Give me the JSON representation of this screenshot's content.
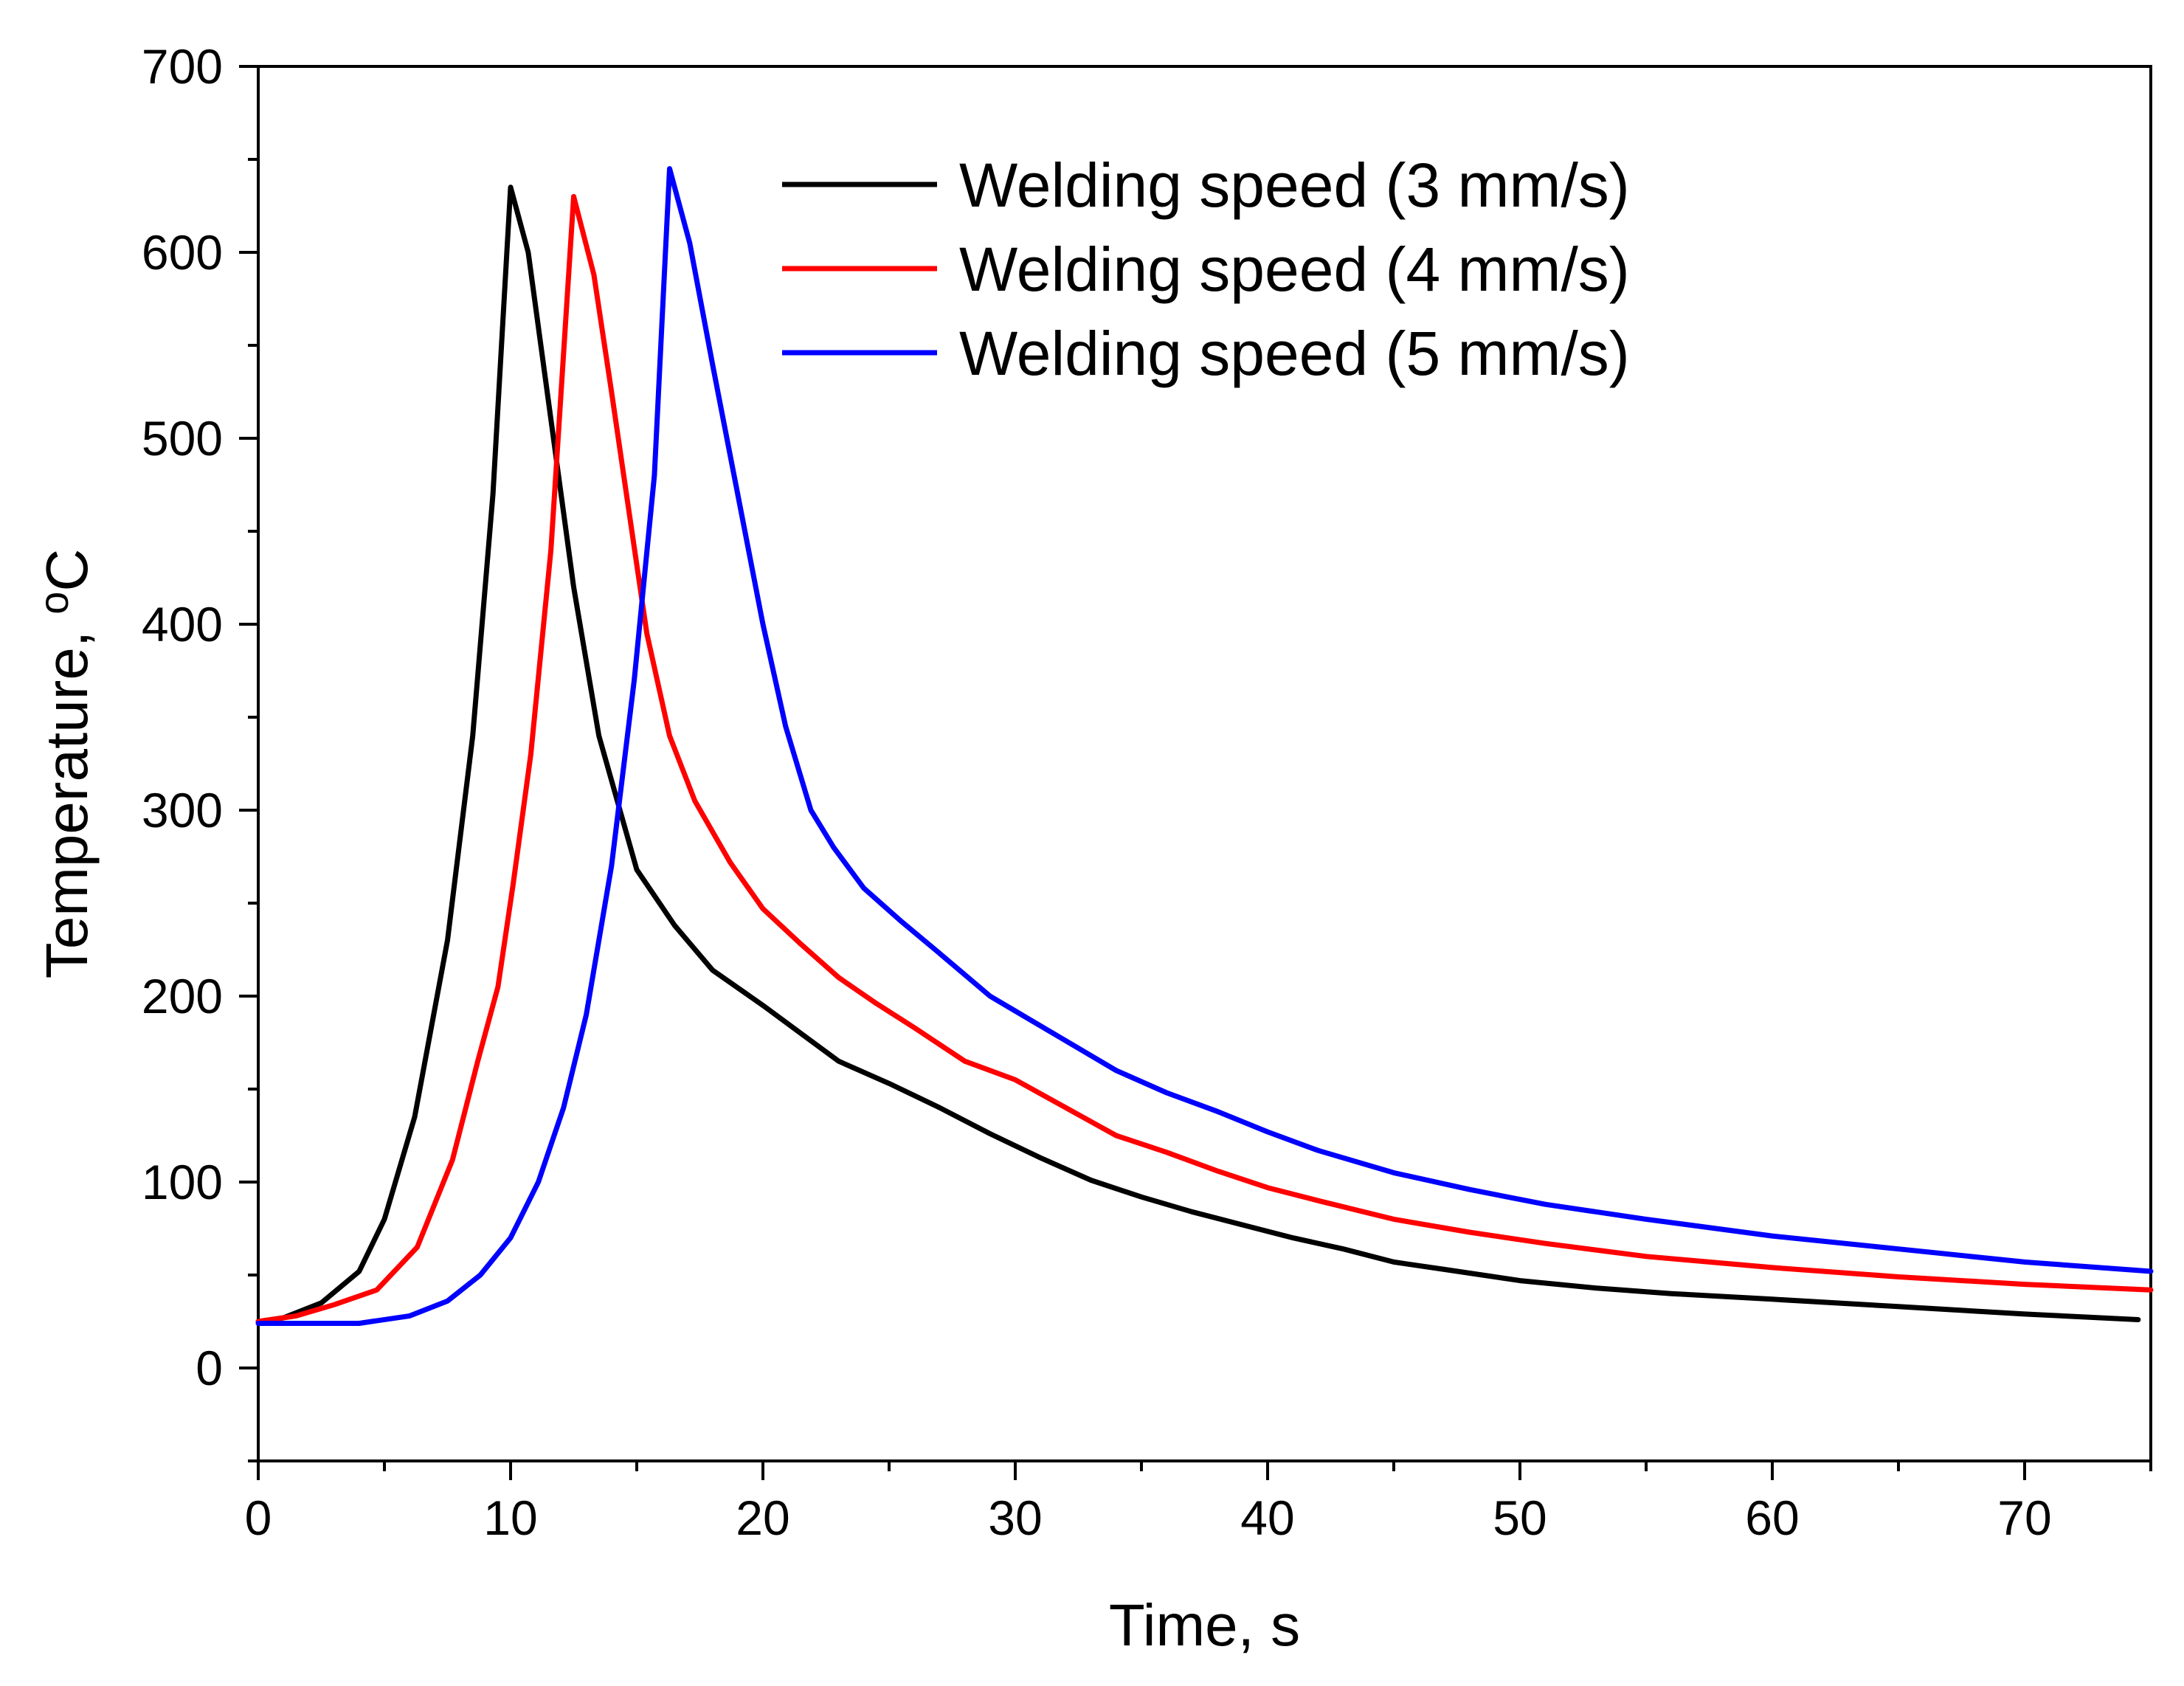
{
  "chart_data": {
    "type": "line",
    "title": "",
    "xlabel": "Time, s",
    "ylabel": {
      "main": "Temperature, ",
      "superscript": "o",
      "unit": "C"
    },
    "xlim": [
      0,
      75
    ],
    "ylim": [
      -50,
      700
    ],
    "x_ticks": [
      0,
      10,
      20,
      30,
      40,
      50,
      60,
      70
    ],
    "y_ticks": [
      0,
      100,
      200,
      300,
      400,
      500,
      600,
      700
    ],
    "x_minor_step": 5,
    "y_minor_step": 50,
    "grid": false,
    "legend_position": "top-right",
    "series": [
      {
        "name": "Welding speed (3 mm/s)",
        "color": "#000000",
        "points": [
          [
            0,
            25
          ],
          [
            1,
            27
          ],
          [
            2.5,
            35
          ],
          [
            4,
            52
          ],
          [
            5,
            80
          ],
          [
            6.2,
            135
          ],
          [
            7.5,
            230
          ],
          [
            8.5,
            340
          ],
          [
            9.3,
            470
          ],
          [
            10,
            635
          ],
          [
            10.7,
            600
          ],
          [
            11.5,
            520
          ],
          [
            12.5,
            420
          ],
          [
            13.5,
            340
          ],
          [
            15,
            268
          ],
          [
            16.5,
            238
          ],
          [
            18,
            214
          ],
          [
            20,
            195
          ],
          [
            21.5,
            180
          ],
          [
            23,
            165
          ],
          [
            25,
            153
          ],
          [
            27,
            140
          ],
          [
            29,
            126
          ],
          [
            31,
            113
          ],
          [
            33,
            101
          ],
          [
            35,
            92
          ],
          [
            37,
            84
          ],
          [
            39,
            77
          ],
          [
            41,
            70
          ],
          [
            43,
            64
          ],
          [
            45,
            57
          ],
          [
            47,
            53
          ],
          [
            50,
            47
          ],
          [
            53,
            43
          ],
          [
            56,
            40
          ],
          [
            60,
            37
          ],
          [
            65,
            33
          ],
          [
            70,
            29
          ],
          [
            74.5,
            26
          ]
        ]
      },
      {
        "name": "Welding speed (4 mm/s)",
        "color": "#ff0000",
        "points": [
          [
            0,
            25
          ],
          [
            1.5,
            28
          ],
          [
            3,
            34
          ],
          [
            4.7,
            42
          ],
          [
            6.3,
            65
          ],
          [
            7.7,
            112
          ],
          [
            8.7,
            165
          ],
          [
            9.5,
            205
          ],
          [
            10.1,
            260
          ],
          [
            10.8,
            330
          ],
          [
            11.6,
            440
          ],
          [
            12.5,
            630
          ],
          [
            13.3,
            588
          ],
          [
            14,
            525
          ],
          [
            14.7,
            460
          ],
          [
            15.4,
            395
          ],
          [
            16.3,
            340
          ],
          [
            17.3,
            305
          ],
          [
            18.7,
            272
          ],
          [
            20,
            247
          ],
          [
            21.5,
            228
          ],
          [
            23,
            210
          ],
          [
            24.5,
            196
          ],
          [
            26,
            183
          ],
          [
            28,
            165
          ],
          [
            30,
            155
          ],
          [
            32,
            140
          ],
          [
            34,
            125
          ],
          [
            36,
            116
          ],
          [
            38,
            106
          ],
          [
            40,
            97
          ],
          [
            42,
            90
          ],
          [
            45,
            80
          ],
          [
            48,
            73
          ],
          [
            51,
            67
          ],
          [
            55,
            60
          ],
          [
            60,
            54
          ],
          [
            65,
            49
          ],
          [
            70,
            45
          ],
          [
            75,
            42
          ]
        ]
      },
      {
        "name": "Welding speed (5 mm/s)",
        "color": "#0000ff",
        "points": [
          [
            0,
            24
          ],
          [
            2,
            24
          ],
          [
            4,
            24
          ],
          [
            6,
            28
          ],
          [
            7.5,
            36
          ],
          [
            8.8,
            50
          ],
          [
            10,
            70
          ],
          [
            11.1,
            100
          ],
          [
            12.1,
            140
          ],
          [
            13,
            190
          ],
          [
            14,
            270
          ],
          [
            14.9,
            370
          ],
          [
            15.7,
            480
          ],
          [
            16.3,
            645
          ],
          [
            17.1,
            605
          ],
          [
            18,
            540
          ],
          [
            19,
            470
          ],
          [
            20,
            400
          ],
          [
            20.9,
            345
          ],
          [
            21.9,
            300
          ],
          [
            22.8,
            280
          ],
          [
            24,
            258
          ],
          [
            25.5,
            240
          ],
          [
            27,
            223
          ],
          [
            29,
            200
          ],
          [
            30,
            192
          ],
          [
            32,
            176
          ],
          [
            34,
            160
          ],
          [
            36,
            148
          ],
          [
            38,
            138
          ],
          [
            40,
            127
          ],
          [
            42,
            117
          ],
          [
            45,
            105
          ],
          [
            48,
            96
          ],
          [
            51,
            88
          ],
          [
            55,
            80
          ],
          [
            60,
            71
          ],
          [
            65,
            64
          ],
          [
            70,
            57
          ],
          [
            75,
            52
          ]
        ]
      }
    ]
  }
}
